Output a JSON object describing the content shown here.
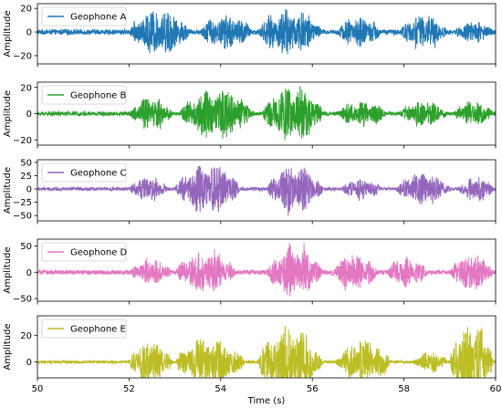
{
  "chart_data": {
    "type": "line",
    "xlabel": "Time (s)",
    "ylabel": "Amplitude",
    "xlim": [
      50,
      60
    ],
    "xticks": [
      "50",
      "52",
      "54",
      "56",
      "58",
      "60"
    ],
    "legend_position": "top-left",
    "grid": false,
    "series_note": "Five stacked seismic traces; envelope of burst activity (peak absolute amplitude) sampled below.",
    "panels": [
      {
        "name": "Geophone A",
        "color": "#1f77b4",
        "ylim": [
          -27,
          24
        ],
        "yticks": [
          "20",
          "0",
          "−20"
        ],
        "yticks_values": [
          20,
          0,
          -20
        ],
        "noise_level": 2,
        "bursts": [
          {
            "start": 52.0,
            "end": 53.4,
            "peak": 20
          },
          {
            "start": 53.5,
            "end": 54.8,
            "peak": 15
          },
          {
            "start": 54.8,
            "end": 56.3,
            "peak": 20
          },
          {
            "start": 56.5,
            "end": 57.6,
            "peak": 13
          },
          {
            "start": 57.9,
            "end": 59.0,
            "peak": 15
          },
          {
            "start": 59.1,
            "end": 60.0,
            "peak": 10
          }
        ]
      },
      {
        "name": "Geophone B",
        "color": "#2ca02c",
        "ylim": [
          -24,
          24
        ],
        "yticks": [
          "20",
          "0",
          "−20"
        ],
        "yticks_values": [
          20,
          0,
          -20
        ],
        "noise_level": 1.5,
        "bursts": [
          {
            "start": 52.0,
            "end": 53.0,
            "peak": 13
          },
          {
            "start": 53.1,
            "end": 54.8,
            "peak": 20
          },
          {
            "start": 54.9,
            "end": 56.3,
            "peak": 22
          },
          {
            "start": 56.5,
            "end": 57.7,
            "peak": 10
          },
          {
            "start": 57.9,
            "end": 59.0,
            "peak": 10
          },
          {
            "start": 59.1,
            "end": 60.0,
            "peak": 10
          }
        ]
      },
      {
        "name": "Geophone C",
        "color": "#9467bd",
        "ylim": [
          -60,
          55
        ],
        "yticks": [
          "50",
          "25",
          "0",
          "−25",
          "−50"
        ],
        "yticks_values": [
          50,
          25,
          0,
          -25,
          -50
        ],
        "noise_level": 3,
        "bursts": [
          {
            "start": 52.0,
            "end": 52.9,
            "peak": 25
          },
          {
            "start": 53.0,
            "end": 54.5,
            "peak": 50
          },
          {
            "start": 55.0,
            "end": 56.3,
            "peak": 45
          },
          {
            "start": 56.6,
            "end": 57.6,
            "peak": 20
          },
          {
            "start": 57.8,
            "end": 59.1,
            "peak": 30
          },
          {
            "start": 59.2,
            "end": 60.0,
            "peak": 25
          }
        ]
      },
      {
        "name": "Geophone D",
        "color": "#e377c2",
        "ylim": [
          -55,
          63
        ],
        "yticks": [
          "50",
          "0",
          "−50"
        ],
        "yticks_values": [
          50,
          0,
          -50
        ],
        "noise_level": 4,
        "bursts": [
          {
            "start": 52.0,
            "end": 53.0,
            "peak": 25
          },
          {
            "start": 53.0,
            "end": 54.4,
            "peak": 40
          },
          {
            "start": 55.0,
            "end": 56.3,
            "peak": 50
          },
          {
            "start": 56.4,
            "end": 57.5,
            "peak": 35
          },
          {
            "start": 57.6,
            "end": 58.6,
            "peak": 30
          },
          {
            "start": 59.0,
            "end": 60.0,
            "peak": 40
          }
        ]
      },
      {
        "name": "Geophone E",
        "color": "#bcbd22",
        "ylim": [
          -12,
          35
        ],
        "yticks": [
          "20",
          "0"
        ],
        "yticks_values": [
          20,
          0
        ],
        "noise_level": 1,
        "bursts": [
          {
            "start": 52.0,
            "end": 53.0,
            "peak": 17
          },
          {
            "start": 53.0,
            "end": 54.6,
            "peak": 20
          },
          {
            "start": 54.8,
            "end": 56.3,
            "peak": 28
          },
          {
            "start": 56.5,
            "end": 57.8,
            "peak": 17
          },
          {
            "start": 58.2,
            "end": 59.0,
            "peak": 8
          },
          {
            "start": 59.0,
            "end": 60.0,
            "peak": 30
          }
        ]
      }
    ]
  }
}
